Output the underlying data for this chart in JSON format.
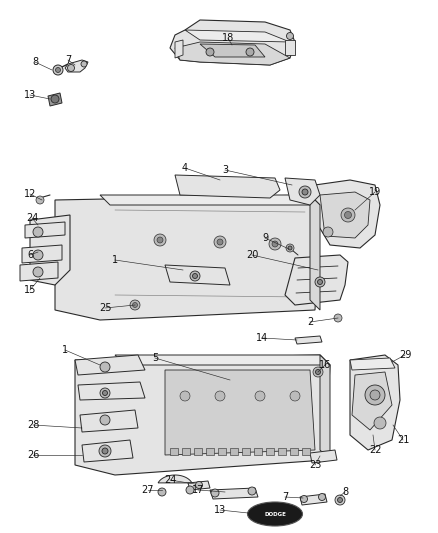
{
  "background_color": "#ffffff",
  "line_color": "#2a2a2a",
  "label_color": "#111111",
  "figsize": [
    4.38,
    5.33
  ],
  "dpi": 100,
  "part_fill": "#f0f0f0",
  "part_fill_dark": "#d8d8d8",
  "part_fill_mid": "#e4e4e4",
  "label_fontsize": 7.0,
  "leader_lw": 0.5,
  "part_lw": 0.8
}
